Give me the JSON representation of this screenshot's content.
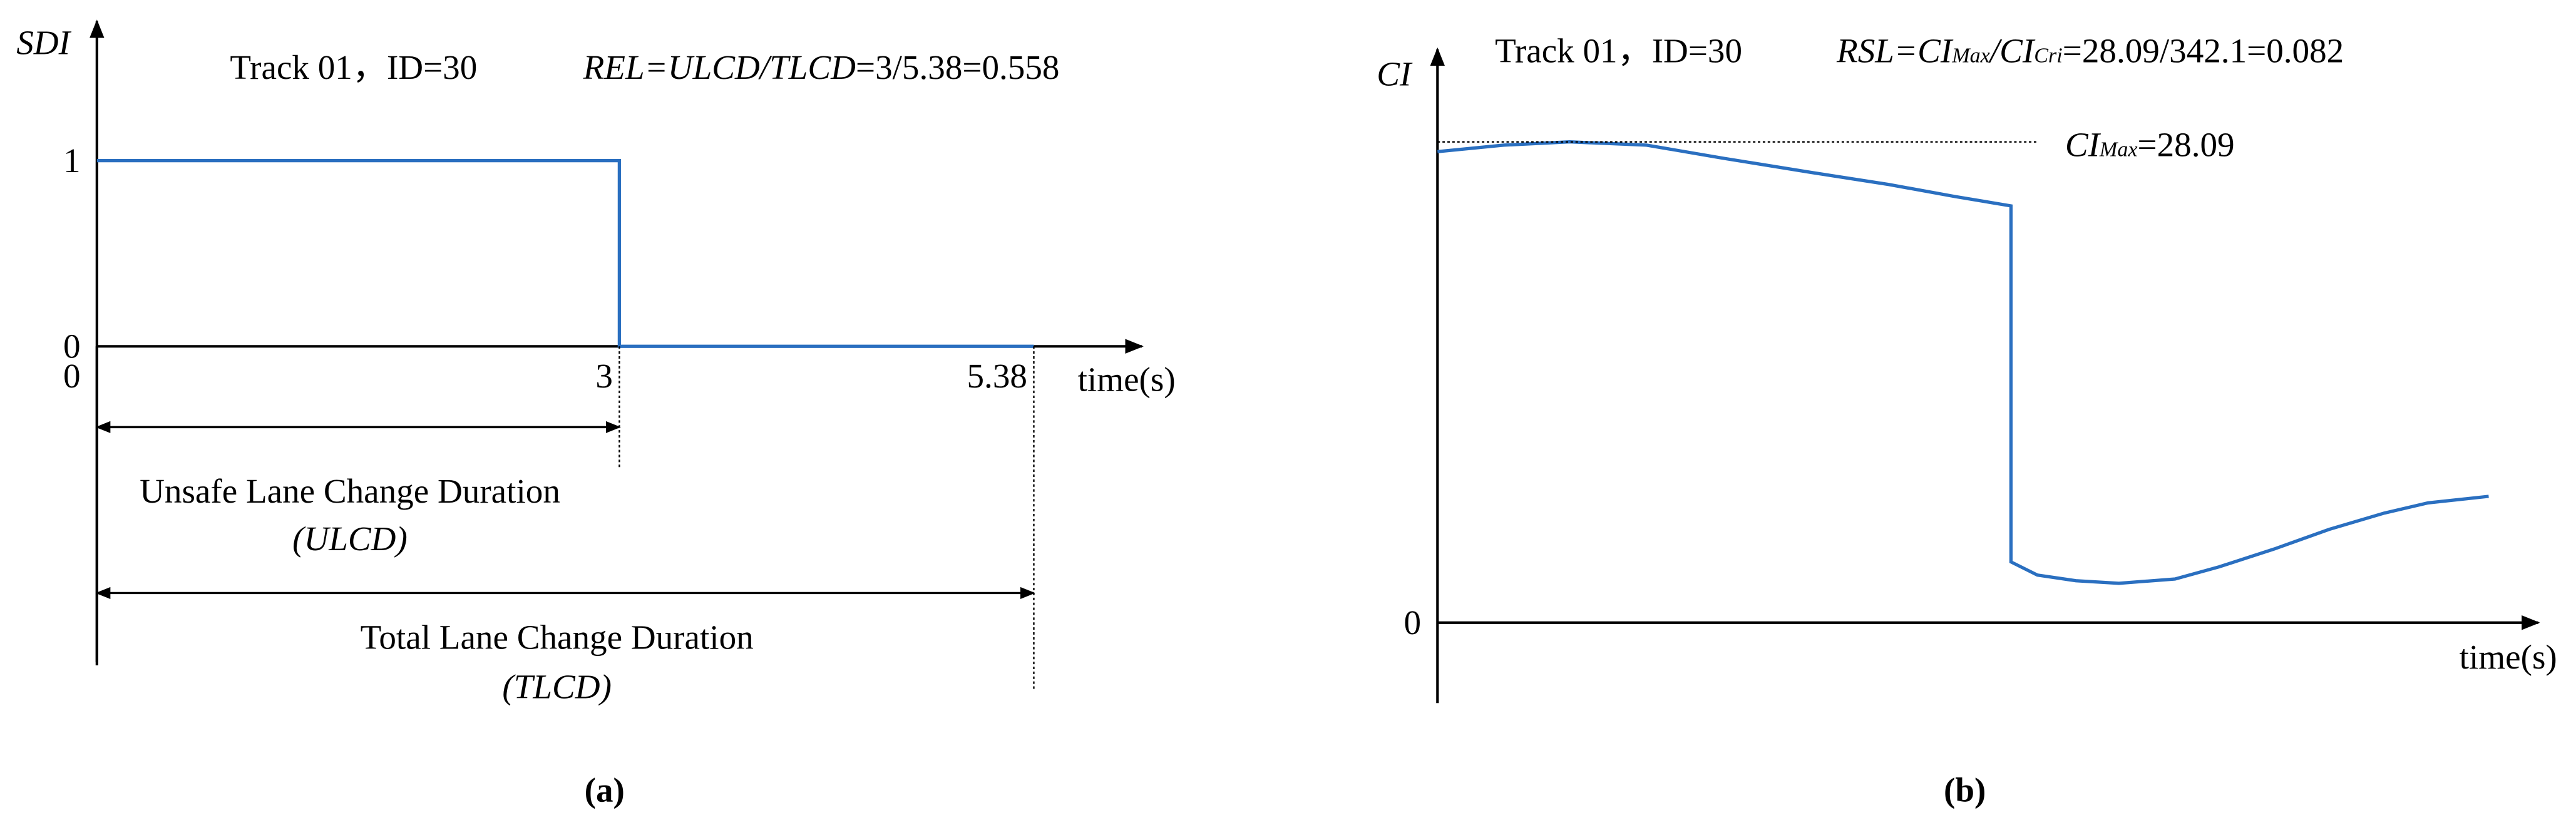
{
  "chart_data": [
    {
      "type": "line",
      "title": "Track 01，ID=30",
      "formula": [
        "REL=ULCD/TLCD",
        "=3/5.38=0.558"
      ],
      "y_label": "SDI",
      "x_label": "time(s)",
      "x": [
        0,
        3,
        3,
        5.38
      ],
      "values": [
        1,
        1,
        0,
        0
      ],
      "color": "#2a6fc0",
      "xlim": [
        0,
        6
      ],
      "ylim": [
        -1.7,
        1.75
      ],
      "xticks": [
        0,
        3,
        5.38
      ],
      "yticks": [
        0,
        1
      ],
      "ulcd": {
        "text": "Unsafe Lane Change Duration",
        "abbr": "(ULCD)"
      },
      "tlcd": {
        "text": "Total Lane Change Duration",
        "abbr": "(TLCD)"
      },
      "panel_label": "(a)"
    },
    {
      "type": "line",
      "title": "Track 01，ID=30",
      "formula": [
        "RSL=CI",
        "Max",
        "/CI",
        "Cri",
        "=28.09/342.1=0.082"
      ],
      "y_label": "CI",
      "x_label": "time(s)",
      "x": [
        0,
        0.6,
        1.2,
        1.9,
        2.6,
        3.4,
        4.1,
        4.7,
        5.21,
        5.21,
        5.45,
        5.8,
        6.19,
        6.7,
        7.1,
        7.6,
        8.1,
        8.6,
        9.0,
        9.55
      ],
      "values": [
        27.52,
        27.9,
        28.09,
        27.9,
        27.13,
        26.3,
        25.6,
        24.9,
        24.35,
        3.55,
        2.78,
        2.45,
        2.3,
        2.55,
        3.26,
        4.3,
        5.45,
        6.4,
        7.0,
        7.38
      ],
      "color": "#2a6fc0",
      "xlim": [
        0,
        10
      ],
      "ylim": [
        -4.7,
        33.5
      ],
      "xticks": [],
      "yticks": [
        0
      ],
      "ci_max": 28.09,
      "max_label": [
        "CI",
        "Max",
        "=28.09"
      ],
      "panel_label": "(b)"
    }
  ]
}
